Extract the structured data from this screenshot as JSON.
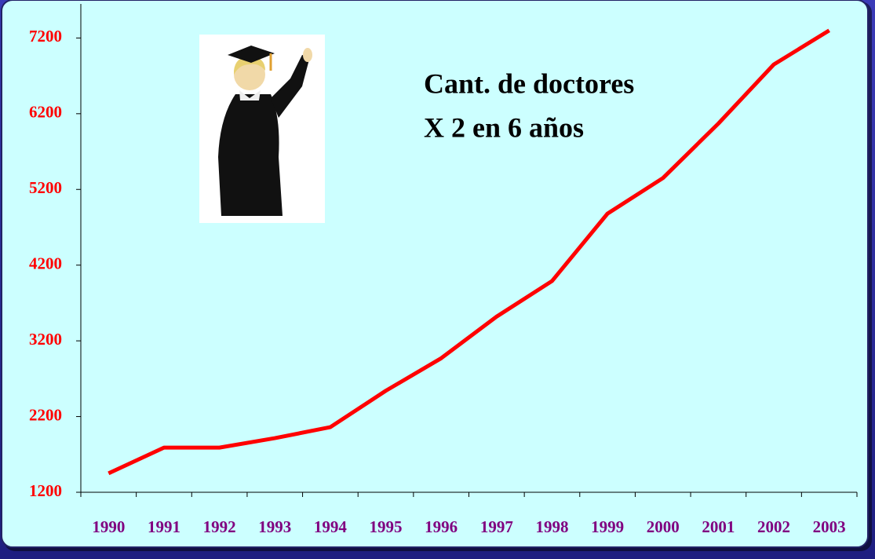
{
  "chart_data": {
    "type": "line",
    "annotation": [
      "Cant. de doctores",
      "X 2 en 6 años"
    ],
    "categories": [
      "1990",
      "1991",
      "1992",
      "1993",
      "1994",
      "1995",
      "1996",
      "1997",
      "1998",
      "1999",
      "2000",
      "2001",
      "2002",
      "2003"
    ],
    "values": [
      1450,
      1790,
      1790,
      1915,
      2060,
      2540,
      2970,
      3520,
      3990,
      4880,
      5350,
      6070,
      6850,
      7300
    ],
    "color": "#ff0000",
    "ylim": [
      1200,
      7650
    ],
    "yticks": [
      1200,
      2200,
      3200,
      4200,
      5200,
      6200,
      7200
    ]
  }
}
